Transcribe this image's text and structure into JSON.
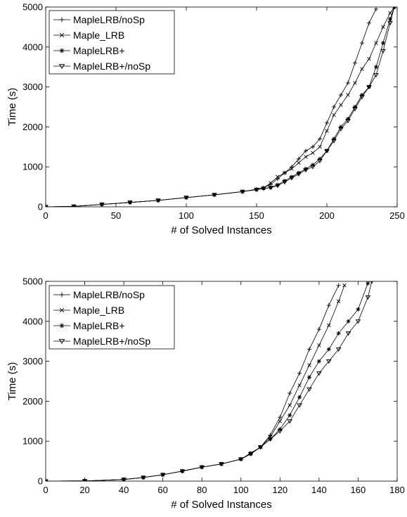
{
  "chart_data": [
    {
      "type": "line",
      "xlabel": "# of Solved Instances",
      "ylabel": "Time (s)",
      "xlim": [
        0,
        250
      ],
      "ylim": [
        0,
        5000
      ],
      "xticks": [
        0,
        50,
        100,
        150,
        200,
        250
      ],
      "yticks": [
        0,
        1000,
        2000,
        3000,
        4000,
        5000
      ],
      "grid": false,
      "legend_position": "top-left",
      "series": [
        {
          "name": "MapleLRB/noSp",
          "marker": "plus",
          "x": [
            0,
            20,
            40,
            60,
            80,
            100,
            120,
            140,
            150,
            155,
            160,
            165,
            170,
            175,
            180,
            185,
            190,
            195,
            200,
            205,
            210,
            215,
            220,
            225,
            230,
            235
          ],
          "y": [
            0,
            10,
            60,
            110,
            160,
            230,
            300,
            380,
            440,
            480,
            560,
            700,
            850,
            1000,
            1200,
            1400,
            1500,
            1700,
            2100,
            2500,
            2800,
            3100,
            3600,
            4100,
            4600,
            4950
          ]
        },
        {
          "name": "Maple_LRB",
          "marker": "x",
          "x": [
            0,
            20,
            40,
            60,
            80,
            100,
            120,
            140,
            150,
            155,
            160,
            165,
            170,
            175,
            180,
            185,
            190,
            195,
            200,
            205,
            210,
            215,
            220,
            225,
            230,
            235,
            240,
            245,
            248
          ],
          "y": [
            0,
            10,
            60,
            110,
            160,
            230,
            300,
            380,
            430,
            470,
            600,
            750,
            850,
            950,
            1100,
            1250,
            1350,
            1500,
            1900,
            2300,
            2550,
            2800,
            3100,
            3450,
            3700,
            4100,
            4500,
            4850,
            5000
          ]
        },
        {
          "name": "MapleLRB+",
          "marker": "asterisk",
          "x": [
            0,
            20,
            40,
            60,
            80,
            100,
            120,
            140,
            150,
            155,
            160,
            165,
            170,
            175,
            180,
            185,
            190,
            195,
            200,
            205,
            210,
            215,
            220,
            225,
            230,
            235,
            240,
            245,
            248
          ],
          "y": [
            0,
            10,
            60,
            110,
            160,
            230,
            300,
            380,
            430,
            460,
            480,
            550,
            650,
            750,
            850,
            950,
            1050,
            1200,
            1400,
            1700,
            2000,
            2200,
            2500,
            2800,
            3000,
            3500,
            4100,
            4700,
            5000
          ]
        },
        {
          "name": "MapleLRB+/noSp",
          "marker": "triangle-down",
          "x": [
            0,
            20,
            40,
            60,
            80,
            100,
            120,
            140,
            150,
            155,
            160,
            165,
            170,
            175,
            180,
            185,
            190,
            195,
            200,
            205,
            210,
            215,
            220,
            225,
            230,
            235,
            240,
            245,
            248
          ],
          "y": [
            0,
            10,
            60,
            110,
            160,
            230,
            300,
            380,
            430,
            460,
            480,
            530,
            620,
            720,
            820,
            920,
            1000,
            1150,
            1400,
            1650,
            1950,
            2150,
            2450,
            2750,
            3000,
            3300,
            3900,
            4600,
            5000
          ]
        }
      ]
    },
    {
      "type": "line",
      "xlabel": "# of Solved Instances",
      "ylabel": "Time (s)",
      "xlim": [
        0,
        180
      ],
      "ylim": [
        0,
        5000
      ],
      "xticks": [
        0,
        20,
        40,
        60,
        80,
        100,
        120,
        140,
        160,
        180
      ],
      "yticks": [
        0,
        1000,
        2000,
        3000,
        4000,
        5000
      ],
      "grid": false,
      "legend_position": "top-left",
      "series": [
        {
          "name": "MapleLRB/noSp",
          "marker": "plus",
          "x": [
            0,
            20,
            40,
            50,
            60,
            70,
            80,
            90,
            100,
            105,
            110,
            115,
            120,
            125,
            130,
            135,
            140,
            145,
            150
          ],
          "y": [
            0,
            5,
            40,
            90,
            160,
            250,
            350,
            430,
            550,
            700,
            850,
            1150,
            1600,
            2200,
            2700,
            3300,
            3800,
            4400,
            4900
          ]
        },
        {
          "name": "Maple_LRB",
          "marker": "x",
          "x": [
            0,
            20,
            40,
            50,
            60,
            70,
            80,
            90,
            100,
            105,
            110,
            115,
            120,
            125,
            130,
            135,
            140,
            145,
            150,
            153
          ],
          "y": [
            0,
            5,
            40,
            90,
            160,
            250,
            350,
            430,
            550,
            700,
            850,
            1100,
            1500,
            1900,
            2400,
            2900,
            3400,
            3900,
            4500,
            4900
          ]
        },
        {
          "name": "MapleLRB+",
          "marker": "asterisk",
          "x": [
            0,
            20,
            40,
            50,
            60,
            70,
            80,
            90,
            100,
            105,
            110,
            115,
            120,
            125,
            130,
            135,
            140,
            145,
            150,
            155,
            160,
            165
          ],
          "y": [
            0,
            5,
            40,
            90,
            160,
            250,
            350,
            430,
            550,
            680,
            850,
            1050,
            1300,
            1650,
            2100,
            2600,
            3000,
            3300,
            3700,
            4000,
            4300,
            4950
          ]
        },
        {
          "name": "MapleLRB+/noSp",
          "marker": "triangle-down",
          "x": [
            0,
            20,
            40,
            50,
            60,
            70,
            80,
            90,
            100,
            105,
            110,
            115,
            120,
            125,
            130,
            135,
            140,
            145,
            150,
            155,
            160,
            165,
            167
          ],
          "y": [
            0,
            5,
            40,
            90,
            160,
            250,
            350,
            430,
            550,
            680,
            850,
            1050,
            1250,
            1500,
            1900,
            2300,
            2700,
            3000,
            3300,
            3700,
            4000,
            4600,
            5000
          ]
        }
      ]
    }
  ]
}
